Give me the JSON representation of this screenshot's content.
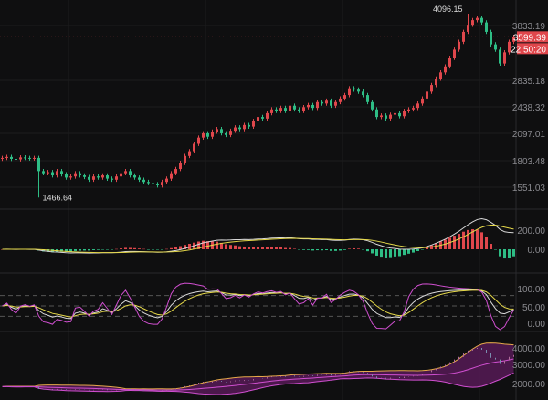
{
  "chart_data": [
    {
      "type": "candlestick",
      "scale": "log",
      "y_ticks": [
        "3833.19",
        "2835.18",
        "2438.32",
        "2097.01",
        "1803.48",
        "1551.03"
      ],
      "high_label": "4096.15",
      "low_label": "1466.64",
      "last_price": "3599.39",
      "countdown": "22:50:20",
      "colors": {
        "up": "#e0474c",
        "down": "#2ebd85",
        "tag": "#e0474c"
      },
      "closes": [
        1830,
        1840,
        1820,
        1815,
        1835,
        1830,
        1825,
        1830,
        1700,
        1680,
        1690,
        1660,
        1700,
        1670,
        1640,
        1650,
        1680,
        1660,
        1645,
        1620,
        1650,
        1640,
        1660,
        1630,
        1620,
        1650,
        1680,
        1700,
        1660,
        1640,
        1620,
        1600,
        1590,
        1580,
        1570,
        1600,
        1630,
        1680,
        1720,
        1780,
        1850,
        1900,
        1980,
        2050,
        2100,
        2060,
        2120,
        2150,
        2100,
        2080,
        2130,
        2170,
        2150,
        2200,
        2180,
        2250,
        2300,
        2280,
        2350,
        2400,
        2380,
        2420,
        2380,
        2450,
        2400,
        2380,
        2430,
        2460,
        2420,
        2500,
        2480,
        2520,
        2450,
        2500,
        2550,
        2600,
        2700,
        2680,
        2650,
        2600,
        2500,
        2400,
        2300,
        2320,
        2280,
        2330,
        2350,
        2310,
        2380,
        2400,
        2420,
        2480,
        2550,
        2650,
        2750,
        2850,
        2950,
        3050,
        3200,
        3350,
        3500,
        3700,
        3850,
        3950,
        4000,
        3900,
        3700,
        3450,
        3350,
        3100,
        3300,
        3500,
        3599.39
      ],
      "extremes": {
        "high": 4096.15,
        "low": 1466.64
      }
    },
    {
      "type": "line",
      "name": "",
      "y_ticks": [
        "200.00",
        "0.00"
      ],
      "series_colors": [
        "#d9d9d9",
        "#e6d94a"
      ],
      "hist_colors": [
        "#e0474c",
        "#2ebd85"
      ]
    },
    {
      "type": "line",
      "y_ticks": [
        "100.00",
        "50.00",
        "0.00"
      ],
      "levels": [
        80,
        50,
        20
      ],
      "series_colors": [
        "#d9d9d9",
        "#e6d94a",
        "#d04fd0"
      ]
    },
    {
      "type": "area",
      "y_ticks": [
        "4000.00",
        "3000.00",
        "2000.00"
      ],
      "band_color": "#5a1a5a",
      "upper_color": "#e6a94a",
      "mid_color": "#d04fd0"
    }
  ]
}
